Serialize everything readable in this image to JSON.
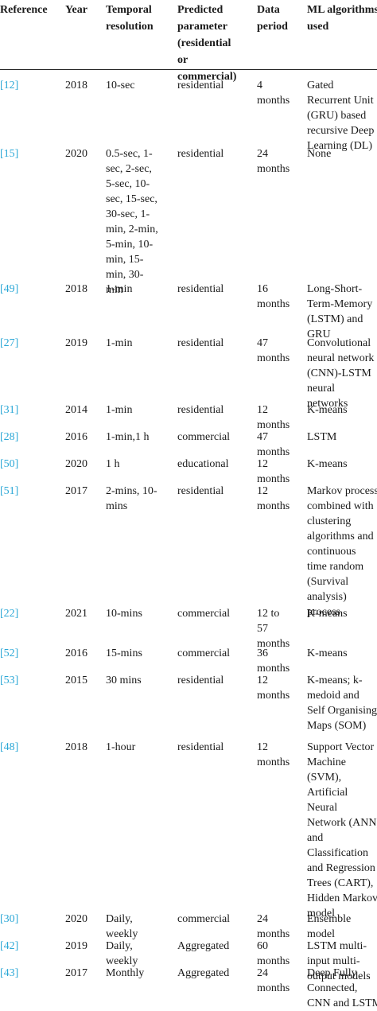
{
  "table": {
    "headers": {
      "reference": [
        "Reference"
      ],
      "year": [
        "Year"
      ],
      "temporal": [
        "Temporal",
        "resolution"
      ],
      "predicted": [
        "Predicted",
        "parameter",
        "(residential",
        "or",
        "commercial)"
      ],
      "data_period": [
        "Data",
        "period"
      ],
      "ml": [
        "ML algorithms",
        "used"
      ]
    },
    "rows": [
      {
        "ref": "[12]",
        "year": "2018",
        "temporal": [
          "10-sec"
        ],
        "param": [
          "residential"
        ],
        "period": [
          "4",
          "months"
        ],
        "ml": [
          "Gated",
          "Recurrent Unit",
          "(GRU) based",
          "recursive Deep",
          "Learning (DL)"
        ]
      },
      {
        "ref": "[15]",
        "year": "2020",
        "temporal": [
          "0.5-sec, 1-",
          "sec, 2-sec,",
          "5-sec, 10-",
          "sec, 15-sec,",
          "30-sec, 1-",
          "min, 2-min,",
          "5-min, 10-",
          "min, 15-",
          "min, 30-",
          "min"
        ],
        "param": [
          "residential"
        ],
        "period": [
          "24",
          "months"
        ],
        "ml": [
          "None"
        ]
      },
      {
        "ref": "[49]",
        "year": "2018",
        "temporal": [
          "1-min"
        ],
        "param": [
          "residential"
        ],
        "period": [
          "16",
          "months"
        ],
        "ml": [
          "Long-Short-",
          "Term-Memory",
          "(LSTM) and",
          "GRU"
        ]
      },
      {
        "ref": "[27]",
        "year": "2019",
        "temporal": [
          "1-min"
        ],
        "param": [
          "residential"
        ],
        "period": [
          "47",
          "months"
        ],
        "ml": [
          "Convolutional",
          "neural network",
          "(CNN)-LSTM",
          "neural",
          "networks"
        ]
      },
      {
        "ref": "[31]",
        "year": "2014",
        "temporal": [
          "1-min"
        ],
        "param": [
          "residential"
        ],
        "period": [
          "12",
          "months"
        ],
        "ml": [
          "K-means"
        ]
      },
      {
        "ref": "[28]",
        "year": "2016",
        "temporal": [
          "1-min,1 h"
        ],
        "param": [
          "commercial"
        ],
        "period": [
          "47",
          "months"
        ],
        "ml": [
          "LSTM"
        ]
      },
      {
        "ref": "[50]",
        "year": "2020",
        "temporal": [
          "1 h"
        ],
        "param": [
          "educational"
        ],
        "period": [
          "12",
          "months"
        ],
        "ml": [
          "K-means"
        ]
      },
      {
        "ref": "[51]",
        "year": "2017",
        "temporal": [
          "2-mins, 10-",
          "mins"
        ],
        "param": [
          "residential"
        ],
        "period": [
          "12",
          "months"
        ],
        "ml": [
          "Markov process",
          "combined with",
          "clustering",
          "algorithms and",
          "continuous",
          "time random",
          "(Survival",
          "analysis)",
          "process"
        ]
      },
      {
        "ref": "[22]",
        "year": "2021",
        "temporal": [
          "10-mins"
        ],
        "param": [
          "commercial"
        ],
        "period": [
          "12 to",
          "57",
          "months"
        ],
        "ml": [
          "K-means"
        ]
      },
      {
        "ref": "[52]",
        "year": "2016",
        "temporal": [
          "15-mins"
        ],
        "param": [
          "commercial"
        ],
        "period": [
          "36",
          "months"
        ],
        "ml": [
          "K-means"
        ]
      },
      {
        "ref": "[53]",
        "year": "2015",
        "temporal": [
          "30 mins"
        ],
        "param": [
          "residential"
        ],
        "period": [
          "12",
          "months"
        ],
        "ml": [
          "K-means; k-",
          "medoid and",
          "Self Organising",
          "Maps (SOM)"
        ]
      },
      {
        "ref": "[48]",
        "year": "2018",
        "temporal": [
          "1-hour"
        ],
        "param": [
          "residential"
        ],
        "period": [
          "12",
          "months"
        ],
        "ml": [
          "Support Vector",
          "Machine",
          "(SVM),",
          "Artificial",
          "Neural",
          "Network (ANN)",
          "and",
          "Classification",
          "and Regression",
          "Trees (CART),",
          "Hidden Markov",
          "model"
        ]
      },
      {
        "ref": "[30]",
        "year": "2020",
        "temporal": [
          "Daily,",
          "weekly"
        ],
        "param": [
          "commercial"
        ],
        "period": [
          "24",
          "months"
        ],
        "ml": [
          "Ensemble",
          "model"
        ]
      },
      {
        "ref": "[42]",
        "year": "2019",
        "temporal": [
          "Daily,",
          "weekly"
        ],
        "param": [
          "Aggregated"
        ],
        "period": [
          "60",
          "months"
        ],
        "ml": [
          "LSTM multi-",
          "input multi-",
          "output models"
        ]
      },
      {
        "ref": "[43]",
        "year": "2017",
        "temporal": [
          "Monthly"
        ],
        "param": [
          "Aggregated"
        ],
        "period": [
          "24",
          "months"
        ],
        "ml": [
          "Deep Fully",
          "Connected,",
          "CNN and LSTM"
        ]
      }
    ]
  }
}
